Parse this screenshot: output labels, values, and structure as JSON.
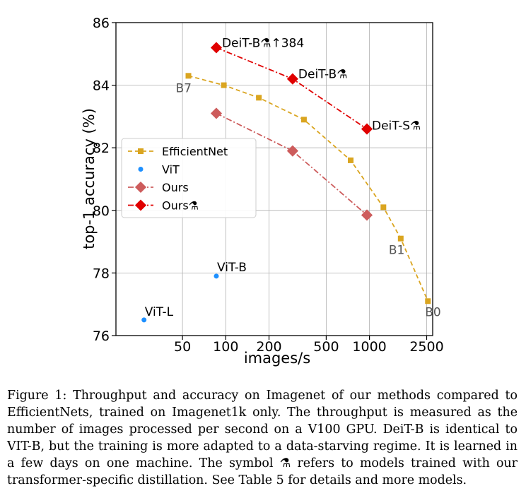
{
  "chart_data": {
    "type": "line",
    "xscale": "log",
    "xlabel": "images/s",
    "ylabel": "top-1 accuracy (%)",
    "ylim": [
      76,
      86
    ],
    "yticks": [
      76,
      78,
      80,
      82,
      84,
      86
    ],
    "ytick_labels": [
      "76",
      "78",
      "80",
      "82",
      "84",
      "86"
    ],
    "xticks": [
      50,
      100,
      200,
      500,
      1000,
      2500
    ],
    "xtick_labels": [
      "50",
      "100",
      "200",
      "500",
      "1000",
      "2500"
    ],
    "grid": true,
    "legend_position": "center-left",
    "series": [
      {
        "name": "EfficientNet",
        "color": "#daa520",
        "marker": "square",
        "linestyle": "dashed",
        "x": [
          55,
          97,
          170,
          350,
          740,
          1250,
          1650,
          2550
        ],
        "y": [
          84.3,
          84.0,
          83.6,
          82.9,
          81.6,
          80.1,
          79.1,
          77.1
        ],
        "point_labels": [
          "B7",
          "",
          "",
          "",
          "",
          "",
          "B1",
          "B0"
        ]
      },
      {
        "name": "ViT",
        "color": "#1e90ff",
        "marker": "circle",
        "linestyle": "none",
        "x": [
          27,
          86
        ],
        "y": [
          76.5,
          77.9
        ],
        "point_labels": [
          "ViT-L",
          "ViT-B"
        ]
      },
      {
        "name": "Ours",
        "color": "#cd5c5c",
        "marker": "diamond",
        "linestyle": "dashdot",
        "x": [
          86,
          292,
          960
        ],
        "y": [
          83.1,
          81.9,
          79.85
        ],
        "point_labels": [
          "",
          "",
          ""
        ]
      },
      {
        "name": "Ours⚗",
        "color": "#e00000",
        "marker": "diamond",
        "linestyle": "dashdot",
        "x": [
          86,
          292,
          960
        ],
        "y": [
          85.2,
          84.2,
          82.6
        ],
        "point_labels": [
          "DeiT-B⚗↑384",
          "DeiT-B⚗",
          "DeiT-S⚗"
        ]
      }
    ]
  },
  "caption": "Figure 1: Throughput and accuracy on Imagenet of our methods compared to EfficientNets, trained on Imagenet1k only. The throughput is measured as the number of images processed per second on a V100 GPU. DeiT-B is identical to VIT-B, but the training is more adapted to a data-starving regime. It is learned in a few days on one machine. The symbol ⚗ refers to models trained with our transformer-specific distillation. See Table 5 for details and more models."
}
